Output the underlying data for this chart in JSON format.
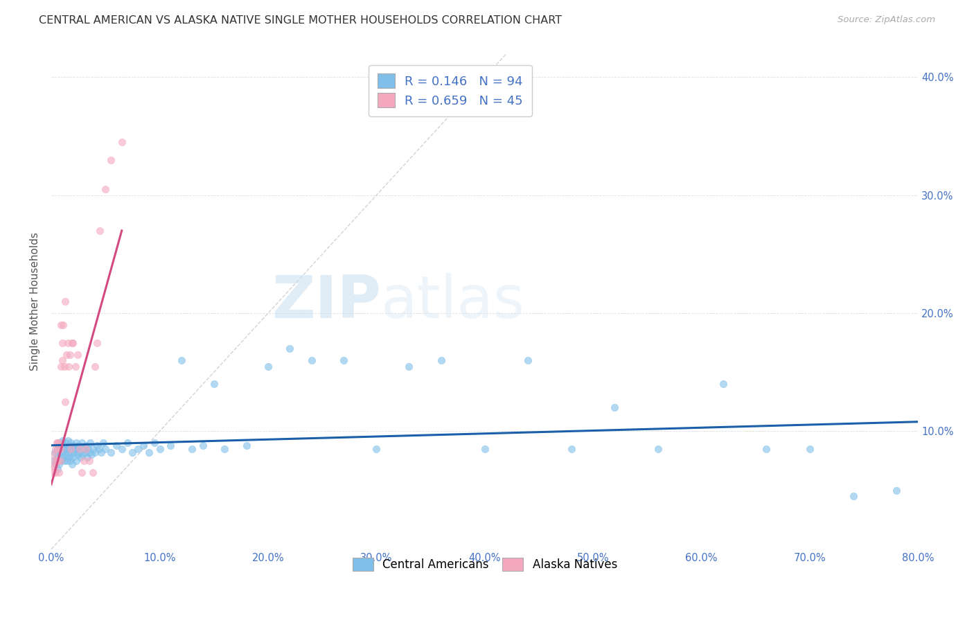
{
  "title": "CENTRAL AMERICAN VS ALASKA NATIVE SINGLE MOTHER HOUSEHOLDS CORRELATION CHART",
  "source": "Source: ZipAtlas.com",
  "ylabel": "Single Mother Households",
  "xlim": [
    0.0,
    0.8
  ],
  "ylim": [
    0.0,
    0.42
  ],
  "xticks": [
    0.0,
    0.1,
    0.2,
    0.3,
    0.4,
    0.5,
    0.6,
    0.7,
    0.8
  ],
  "yticks": [
    0.0,
    0.1,
    0.2,
    0.3,
    0.4
  ],
  "xtick_labels": [
    "0.0%",
    "10.0%",
    "20.0%",
    "30.0%",
    "40.0%",
    "50.0%",
    "60.0%",
    "70.0%",
    "80.0%"
  ],
  "ytick_labels": [
    "",
    "10.0%",
    "20.0%",
    "30.0%",
    "40.0%"
  ],
  "blue_R": "0.146",
  "blue_N": "94",
  "pink_R": "0.659",
  "pink_N": "45",
  "blue_color": "#7fbfea",
  "pink_color": "#f4a8be",
  "blue_line_color": "#1a5fa8",
  "pink_line_color": "#d44a80",
  "trendline_dash_color": "#c8c8c8",
  "legend_label_blue": "Central Americans",
  "legend_label_pink": "Alaska Natives",
  "blue_scatter_x": [
    0.002,
    0.003,
    0.004,
    0.005,
    0.006,
    0.006,
    0.007,
    0.007,
    0.008,
    0.008,
    0.009,
    0.009,
    0.01,
    0.01,
    0.011,
    0.011,
    0.012,
    0.012,
    0.013,
    0.013,
    0.014,
    0.014,
    0.015,
    0.015,
    0.016,
    0.016,
    0.017,
    0.017,
    0.018,
    0.018,
    0.019,
    0.019,
    0.02,
    0.02,
    0.021,
    0.022,
    0.023,
    0.023,
    0.024,
    0.025,
    0.025,
    0.026,
    0.027,
    0.028,
    0.029,
    0.03,
    0.031,
    0.032,
    0.033,
    0.034,
    0.035,
    0.036,
    0.037,
    0.038,
    0.04,
    0.042,
    0.044,
    0.046,
    0.048,
    0.05,
    0.055,
    0.06,
    0.065,
    0.07,
    0.075,
    0.08,
    0.085,
    0.09,
    0.095,
    0.1,
    0.11,
    0.12,
    0.13,
    0.14,
    0.15,
    0.16,
    0.18,
    0.2,
    0.22,
    0.24,
    0.27,
    0.3,
    0.33,
    0.36,
    0.4,
    0.44,
    0.48,
    0.52,
    0.56,
    0.62,
    0.66,
    0.7,
    0.74,
    0.78
  ],
  "blue_scatter_y": [
    0.075,
    0.082,
    0.072,
    0.078,
    0.085,
    0.068,
    0.088,
    0.072,
    0.09,
    0.08,
    0.085,
    0.075,
    0.092,
    0.082,
    0.088,
    0.078,
    0.085,
    0.075,
    0.09,
    0.08,
    0.085,
    0.075,
    0.092,
    0.082,
    0.088,
    0.078,
    0.085,
    0.075,
    0.09,
    0.08,
    0.085,
    0.072,
    0.088,
    0.078,
    0.082,
    0.085,
    0.075,
    0.09,
    0.08,
    0.088,
    0.082,
    0.085,
    0.078,
    0.09,
    0.08,
    0.085,
    0.082,
    0.088,
    0.078,
    0.085,
    0.082,
    0.09,
    0.08,
    0.085,
    0.082,
    0.088,
    0.085,
    0.082,
    0.09,
    0.085,
    0.082,
    0.088,
    0.085,
    0.09,
    0.082,
    0.085,
    0.088,
    0.082,
    0.09,
    0.085,
    0.088,
    0.16,
    0.085,
    0.088,
    0.14,
    0.085,
    0.088,
    0.155,
    0.17,
    0.16,
    0.16,
    0.085,
    0.155,
    0.16,
    0.085,
    0.16,
    0.085,
    0.12,
    0.085,
    0.14,
    0.085,
    0.085,
    0.045,
    0.05
  ],
  "pink_scatter_x": [
    0.001,
    0.002,
    0.002,
    0.003,
    0.003,
    0.004,
    0.004,
    0.005,
    0.005,
    0.006,
    0.006,
    0.006,
    0.007,
    0.007,
    0.008,
    0.008,
    0.009,
    0.009,
    0.01,
    0.01,
    0.011,
    0.012,
    0.013,
    0.013,
    0.014,
    0.015,
    0.016,
    0.017,
    0.018,
    0.019,
    0.02,
    0.022,
    0.024,
    0.026,
    0.028,
    0.03,
    0.032,
    0.035,
    0.038,
    0.04,
    0.042,
    0.045,
    0.05,
    0.055,
    0.065
  ],
  "pink_scatter_y": [
    0.07,
    0.065,
    0.08,
    0.075,
    0.07,
    0.085,
    0.065,
    0.09,
    0.075,
    0.085,
    0.09,
    0.075,
    0.065,
    0.09,
    0.075,
    0.085,
    0.19,
    0.155,
    0.16,
    0.175,
    0.19,
    0.155,
    0.125,
    0.21,
    0.165,
    0.175,
    0.155,
    0.165,
    0.085,
    0.175,
    0.175,
    0.155,
    0.165,
    0.085,
    0.065,
    0.075,
    0.085,
    0.075,
    0.065,
    0.155,
    0.175,
    0.27,
    0.305,
    0.33,
    0.345
  ],
  "blue_trend_x": [
    0.0,
    0.8
  ],
  "blue_trend_y": [
    0.088,
    0.108
  ],
  "pink_trend_x": [
    0.0,
    0.065
  ],
  "pink_trend_y": [
    0.055,
    0.27
  ],
  "diag_trend_x": [
    0.0,
    0.42
  ],
  "diag_trend_y": [
    0.0,
    0.42
  ],
  "watermark_zip": "ZIP",
  "watermark_atlas": "atlas",
  "figsize": [
    14.06,
    8.92
  ],
  "dpi": 100
}
